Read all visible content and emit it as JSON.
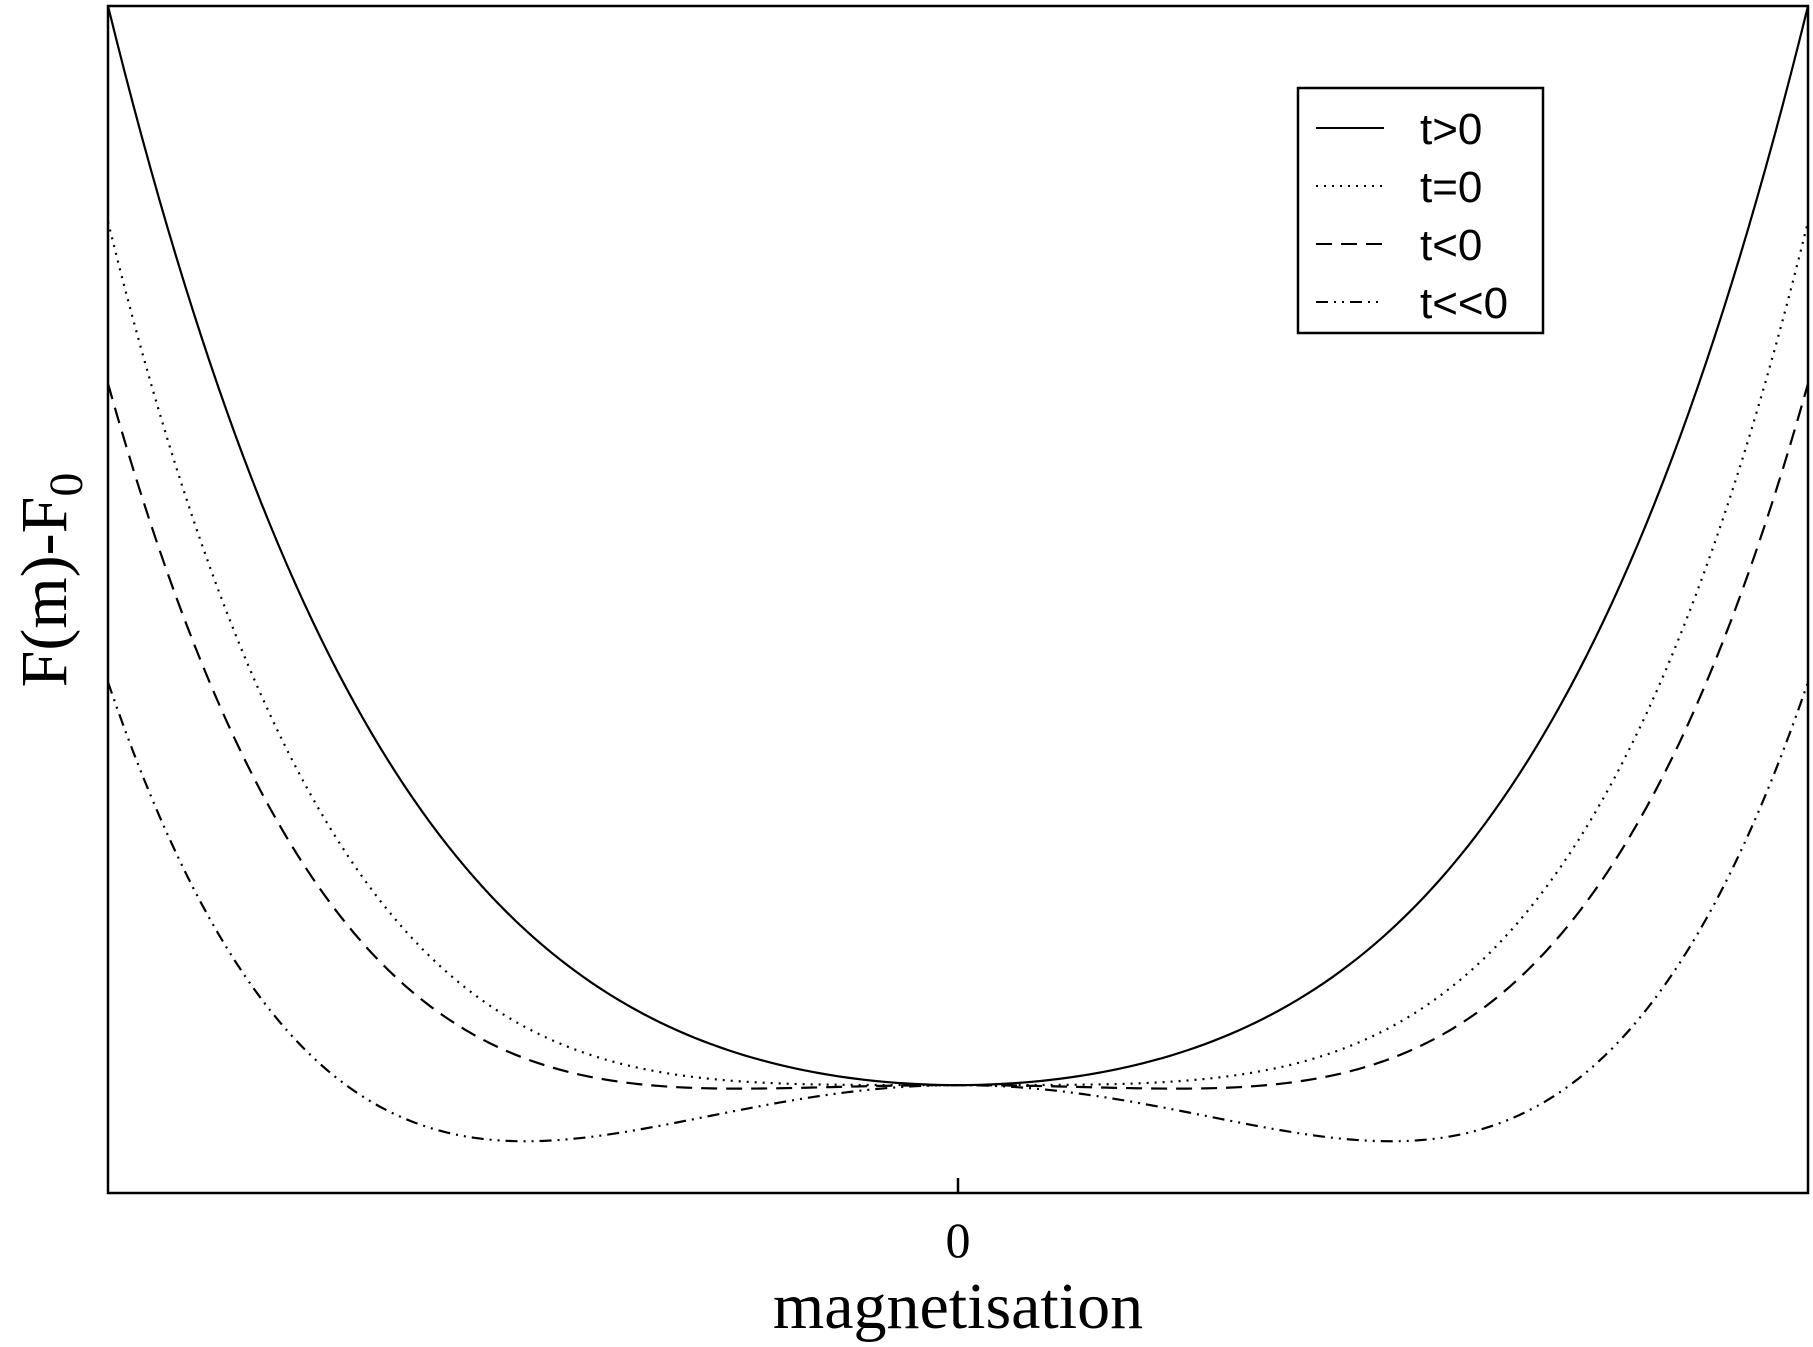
{
  "chart_data": {
    "type": "line",
    "xlabel": "magnetisation",
    "ylabel_main": "F(m)-F",
    "ylabel_subscript": "0",
    "xticks": [
      {
        "value": 0,
        "label": "0"
      }
    ],
    "xlim": [
      -1,
      1
    ],
    "ylim": [
      -0.15,
      1.5
    ],
    "grid": false,
    "legend_position": "top-right",
    "series": [
      {
        "name": "t>0",
        "style": "solid",
        "formula": "y = 0.6 m^2 + 0.9 m^4",
        "x": [
          -1,
          -0.75,
          -0.5,
          -0.25,
          0,
          0.25,
          0.5,
          0.75,
          1
        ],
        "y": [
          1.5,
          0.622,
          0.206,
          0.041,
          0,
          0.041,
          0.206,
          0.622,
          1.5
        ]
      },
      {
        "name": "t=0",
        "style": "dotted",
        "formula": "y = 1.2 m^4",
        "x": [
          -1,
          -0.75,
          -0.5,
          -0.25,
          0,
          0.25,
          0.5,
          0.75,
          1
        ],
        "y": [
          1.2,
          0.38,
          0.075,
          0.005,
          0,
          0.005,
          0.075,
          0.38,
          1.2
        ]
      },
      {
        "name": "t<0",
        "style": "dashed",
        "formula": "y = -0.15 m^2 + 1.125 m^4",
        "x": [
          -1,
          -0.75,
          -0.5,
          -0.25,
          0,
          0.25,
          0.5,
          0.75,
          1
        ],
        "y": [
          0.975,
          0.272,
          0.033,
          -0.005,
          0,
          -0.005,
          0.033,
          0.272,
          0.975
        ]
      },
      {
        "name": "t<<0",
        "style": "dash-dot-dot",
        "formula": "y = -0.6 m^2 + 1.16 m^4",
        "x": [
          -1,
          -0.75,
          -0.5,
          -0.25,
          0,
          0.25,
          0.5,
          0.75,
          1
        ],
        "y": [
          0.56,
          0.03,
          -0.078,
          -0.033,
          0,
          -0.033,
          -0.078,
          0.03,
          0.56
        ]
      }
    ]
  }
}
